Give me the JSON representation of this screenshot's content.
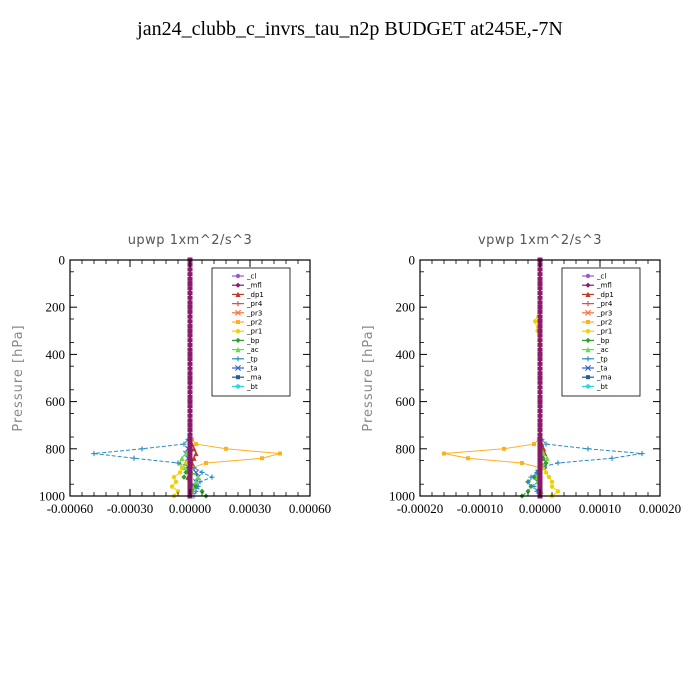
{
  "title": "jan24_clubb_c_invrs_tau_n2p  BUDGET at245E,-7N",
  "chart_data": [
    {
      "type": "line",
      "title": "upwp   1xm^2/s^3",
      "ylabel": "Pressure [hPa]",
      "xlabel": "",
      "xlim": [
        -0.0006,
        0.0006
      ],
      "ylim": [
        1000,
        0
      ],
      "xticks": [
        -0.0006,
        -0.0003,
        0.0,
        0.0003,
        0.0006
      ],
      "xtick_labels": [
        "-0.00060",
        "-0.00030",
        "0.00000",
        "0.00030",
        "0.00060"
      ],
      "yticks": [
        0,
        200,
        400,
        600,
        800,
        1000
      ],
      "ytick_labels": [
        "0",
        "200",
        "400",
        "600",
        "800",
        "1000"
      ],
      "legend_position": "top-right",
      "y": [
        0,
        100,
        200,
        300,
        400,
        500,
        600,
        700,
        760,
        780,
        800,
        820,
        840,
        860,
        880,
        900,
        920,
        940,
        960,
        980,
        1000
      ],
      "series": [
        {
          "name": "_cl",
          "color": "#9b59d0",
          "values": [
            0,
            0,
            0,
            0,
            0,
            0,
            0,
            0,
            0,
            0,
            0,
            0,
            0,
            0,
            0,
            0,
            0,
            0,
            0,
            0,
            0
          ]
        },
        {
          "name": "_mfl",
          "color": "#8b1a6b",
          "values": [
            0,
            0,
            0,
            0,
            0,
            0,
            0,
            0,
            0,
            0,
            0,
            0,
            0,
            0,
            0,
            0,
            0,
            0,
            0,
            0,
            0
          ]
        },
        {
          "name": "_dp1",
          "color": "#c0392b",
          "values": [
            0,
            0,
            0,
            0,
            0,
            0,
            0,
            0,
            0,
            1e-05,
            2e-05,
            3e-05,
            2e-05,
            1e-05,
            0,
            0,
            -1e-05,
            0,
            0,
            0,
            0
          ]
        },
        {
          "name": "_pr4",
          "color": "#e74c3c",
          "values": [
            0,
            0,
            0,
            0,
            0,
            0,
            0,
            0,
            0,
            0,
            0,
            0,
            0,
            0,
            0,
            0,
            0,
            0,
            0,
            0,
            0
          ]
        },
        {
          "name": "_pr3",
          "color": "#ff6f3c",
          "values": [
            0,
            0,
            0,
            0,
            0,
            0,
            0,
            0,
            0,
            0,
            0,
            0,
            0,
            0,
            0,
            0,
            0,
            0,
            0,
            0,
            0
          ]
        },
        {
          "name": "_pr2",
          "color": "#ffb020",
          "values": [
            0,
            0,
            0,
            0,
            0,
            0,
            0,
            0,
            1e-05,
            3e-05,
            0.00018,
            0.00045,
            0.00036,
            8e-05,
            1e-05,
            0,
            0,
            0,
            0,
            0,
            0
          ]
        },
        {
          "name": "_pr1",
          "color": "#f0d000",
          "values": [
            0,
            0,
            0,
            0,
            0,
            0,
            0,
            0,
            0,
            0,
            0,
            0,
            0,
            -2e-05,
            -4e-05,
            -5e-05,
            -8e-05,
            -7e-05,
            -9e-05,
            -6e-05,
            -8e-05
          ]
        },
        {
          "name": "_bp",
          "color": "#2e9e2e",
          "values": [
            0,
            0,
            0,
            0,
            0,
            0,
            0,
            0,
            0,
            0,
            0,
            0,
            0,
            0,
            -1e-05,
            -2e-05,
            -3e-05,
            0,
            3e-05,
            6e-05,
            8e-05
          ]
        },
        {
          "name": "_ac",
          "color": "#66dd44",
          "values": [
            0,
            0,
            0,
            0,
            0,
            0,
            0,
            0,
            0,
            0,
            0,
            -2e-05,
            -4e-05,
            -5e-05,
            -3e-05,
            1e-05,
            4e-05,
            3e-05,
            2e-05,
            1e-05,
            0
          ]
        },
        {
          "name": "_tp",
          "color": "#2a8cc0",
          "values": [
            0,
            0,
            0,
            0,
            0,
            0,
            0,
            0,
            -1e-05,
            -3e-05,
            -0.00024,
            -0.00048,
            -0.00028,
            -6e-05,
            2e-05,
            6e-05,
            0.00011,
            5e-05,
            4e-05,
            3e-05,
            2e-05
          ]
        },
        {
          "name": "_ta",
          "color": "#3060d0",
          "values": [
            0,
            0,
            0,
            0,
            0,
            0,
            0,
            0,
            0,
            0,
            -1e-05,
            -2e-05,
            -1e-05,
            0,
            1e-05,
            3e-05,
            4e-05,
            3e-05,
            2e-05,
            1e-05,
            0
          ]
        },
        {
          "name": "_ma",
          "color": "#1a5fa0",
          "values": [
            0,
            0,
            0,
            0,
            0,
            0,
            0,
            0,
            0,
            0,
            0,
            0,
            0,
            0,
            0,
            0,
            0,
            0,
            0,
            0,
            0
          ]
        },
        {
          "name": "_bt",
          "color": "#28d8e0",
          "values": [
            0,
            0,
            0,
            0,
            0,
            0,
            0,
            0,
            0,
            0,
            0,
            0,
            0,
            0,
            0,
            0,
            0,
            0,
            0,
            0,
            0
          ]
        }
      ]
    },
    {
      "type": "line",
      "title": "vpwp   1xm^2/s^3",
      "ylabel": "Pressure [hPa]",
      "xlabel": "",
      "xlim": [
        -0.0002,
        0.0002
      ],
      "ylim": [
        1000,
        0
      ],
      "xticks": [
        -0.0002,
        -0.0001,
        0.0,
        0.0001,
        0.0002
      ],
      "xtick_labels": [
        "-0.00020",
        "-0.00010",
        "0.00000",
        "0.00010",
        "0.00020"
      ],
      "yticks": [
        0,
        200,
        400,
        600,
        800,
        1000
      ],
      "ytick_labels": [
        "0",
        "200",
        "400",
        "600",
        "800",
        "1000"
      ],
      "legend_position": "top-right",
      "y": [
        0,
        100,
        200,
        260,
        300,
        400,
        500,
        600,
        700,
        760,
        780,
        800,
        820,
        840,
        860,
        880,
        900,
        920,
        940,
        960,
        980,
        1000
      ],
      "series": [
        {
          "name": "_cl",
          "color": "#9b59d0",
          "values": [
            0,
            0,
            0,
            0,
            0,
            0,
            0,
            0,
            0,
            0,
            0,
            0,
            0,
            0,
            0,
            0,
            0,
            0,
            0,
            0,
            0,
            0
          ]
        },
        {
          "name": "_mfl",
          "color": "#8b1a6b",
          "values": [
            0,
            0,
            0,
            0,
            0,
            0,
            0,
            0,
            0,
            0,
            0,
            0,
            0,
            0,
            0,
            0,
            0,
            0,
            0,
            0,
            0,
            0
          ]
        },
        {
          "name": "_dp1",
          "color": "#c0392b",
          "values": [
            0,
            0,
            0,
            0,
            0,
            0,
            0,
            0,
            0,
            0,
            3e-06,
            6e-06,
            8e-06,
            5e-06,
            2e-06,
            0,
            0,
            0,
            0,
            0,
            0,
            0
          ]
        },
        {
          "name": "_pr4",
          "color": "#e74c3c",
          "values": [
            0,
            0,
            0,
            0,
            0,
            0,
            0,
            0,
            0,
            0,
            0,
            0,
            0,
            0,
            0,
            0,
            0,
            0,
            0,
            0,
            0,
            0
          ]
        },
        {
          "name": "_pr3",
          "color": "#ff6f3c",
          "values": [
            0,
            0,
            0,
            0,
            0,
            0,
            0,
            0,
            0,
            0,
            0,
            0,
            0,
            0,
            0,
            0,
            0,
            0,
            0,
            0,
            0,
            0
          ]
        },
        {
          "name": "_pr2",
          "color": "#ffb020",
          "values": [
            0,
            0,
            0,
            0,
            0,
            0,
            0,
            0,
            0,
            -2e-06,
            -1e-05,
            -6e-05,
            -0.00016,
            -0.00012,
            -3e-05,
            0,
            0,
            0,
            0,
            0,
            0,
            0
          ]
        },
        {
          "name": "_pr1",
          "color": "#f0d000",
          "values": [
            0,
            0,
            0,
            -8e-06,
            -4e-06,
            0,
            0,
            0,
            0,
            0,
            0,
            0,
            0,
            0,
            0,
            5e-06,
            1e-05,
            1.5e-05,
            2e-05,
            2e-05,
            3e-05,
            2e-05
          ]
        },
        {
          "name": "_bp",
          "color": "#2e9e2e",
          "values": [
            0,
            0,
            0,
            0,
            0,
            0,
            0,
            0,
            0,
            0,
            0,
            0,
            0,
            5e-06,
            1e-05,
            8e-06,
            -4e-06,
            -1e-05,
            -2e-05,
            -1.5e-05,
            -2e-05,
            -3e-05
          ]
        },
        {
          "name": "_ac",
          "color": "#66dd44",
          "values": [
            0,
            0,
            0,
            0,
            0,
            0,
            0,
            0,
            0,
            0,
            0,
            2e-06,
            6e-06,
            1.2e-05,
            8e-06,
            2e-06,
            -3e-06,
            -6e-06,
            -4e-06,
            0,
            2e-06,
            0
          ]
        },
        {
          "name": "_tp",
          "color": "#2a8cc0",
          "values": [
            0,
            0,
            0,
            0,
            0,
            0,
            0,
            0,
            0,
            3e-06,
            1e-05,
            8e-05,
            0.00017,
            0.00012,
            3e-05,
            0,
            -5e-06,
            -1.5e-05,
            -2e-05,
            -1e-05,
            -5e-06,
            0
          ]
        },
        {
          "name": "_ta",
          "color": "#3060d0",
          "values": [
            0,
            0,
            0,
            0,
            0,
            0,
            0,
            0,
            0,
            0,
            0,
            0,
            0,
            0,
            0,
            0,
            -3e-06,
            -6e-06,
            -4e-06,
            0,
            0,
            0
          ]
        },
        {
          "name": "_ma",
          "color": "#1a5fa0",
          "values": [
            0,
            0,
            0,
            0,
            0,
            0,
            0,
            0,
            0,
            0,
            0,
            0,
            0,
            0,
            0,
            0,
            0,
            0,
            0,
            0,
            0,
            0
          ]
        },
        {
          "name": "_bt",
          "color": "#28d8e0",
          "values": [
            0,
            0,
            0,
            0,
            0,
            0,
            0,
            0,
            0,
            0,
            0,
            0,
            0,
            0,
            0,
            0,
            0,
            0,
            0,
            0,
            0,
            0
          ]
        }
      ]
    }
  ]
}
